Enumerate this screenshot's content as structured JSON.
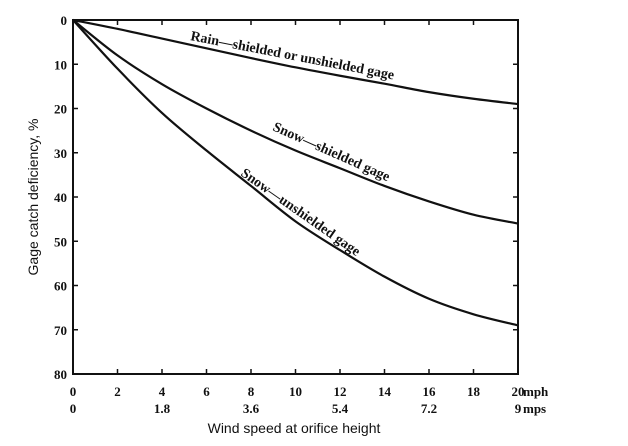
{
  "chart_data": {
    "type": "line",
    "xlabel": "Wind speed at orifice height",
    "ylabel": "Gage catch deficiency, %",
    "xlim": [
      0,
      20
    ],
    "ylim": [
      0,
      80
    ],
    "y_inverted": true,
    "grid": false,
    "x_ticks": [
      "0",
      "2",
      "4",
      "6",
      "8",
      "10",
      "12",
      "14",
      "16",
      "18",
      "20"
    ],
    "x_unit_primary": "mph",
    "x_ticks_secondary": [
      "0",
      "1.8",
      "3.6",
      "5.4",
      "7.2",
      "9"
    ],
    "x_unit_secondary": "mps",
    "y_ticks": [
      "0",
      "10",
      "20",
      "30",
      "40",
      "50",
      "60",
      "70",
      "80"
    ],
    "series": [
      {
        "name": "Rain—shielded or unshielded gage",
        "x": [
          0,
          2,
          4,
          6,
          8,
          10,
          12,
          14,
          16,
          18,
          20
        ],
        "y": [
          0,
          2.0,
          4.2,
          6.4,
          8.6,
          10.7,
          12.6,
          14.4,
          16.3,
          17.8,
          19.0
        ]
      },
      {
        "name": "Snow—shielded gage",
        "x": [
          0,
          2,
          4,
          6,
          8,
          10,
          12,
          14,
          16,
          18,
          20
        ],
        "y": [
          0,
          8.0,
          14.5,
          20.0,
          25.0,
          29.5,
          33.5,
          37.5,
          41.0,
          44.0,
          46.0
        ]
      },
      {
        "name": "Snow—unshielded gage",
        "x": [
          0,
          2,
          4,
          6,
          8,
          10,
          12,
          14,
          16,
          18,
          20
        ],
        "y": [
          0,
          11.0,
          21.0,
          29.5,
          37.5,
          45.5,
          52.0,
          58.0,
          63.0,
          66.5,
          69.0
        ]
      }
    ]
  }
}
